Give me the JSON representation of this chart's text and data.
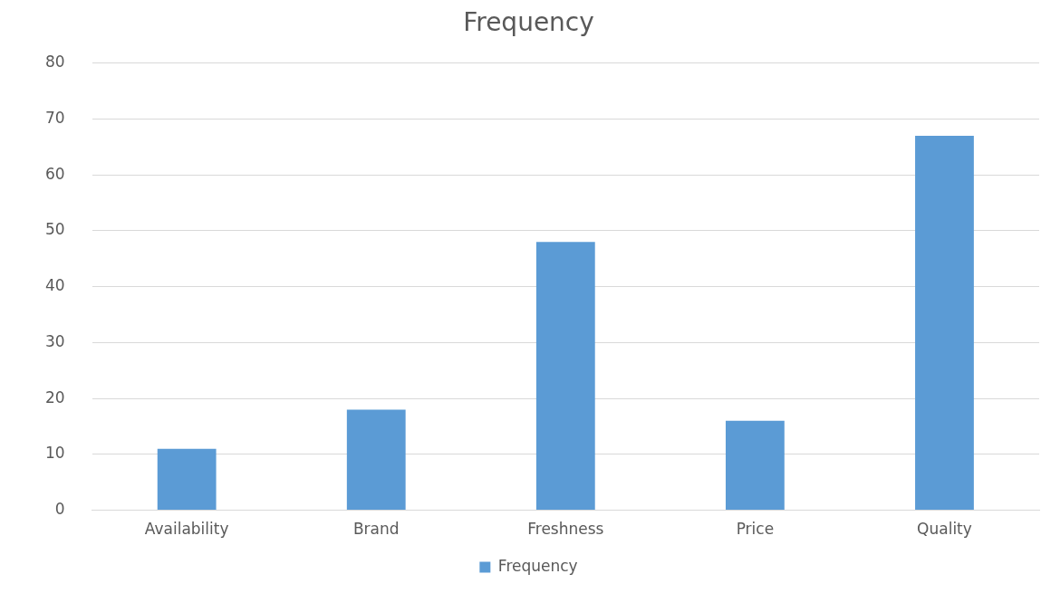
{
  "chart_data": {
    "type": "bar",
    "title": "Frequency",
    "categories": [
      "Availability",
      "Brand",
      "Freshness",
      "Price",
      "Quality"
    ],
    "series": [
      {
        "name": "Frequency",
        "color": "#5b9bd5",
        "values": [
          11,
          18,
          48,
          16,
          67
        ]
      }
    ],
    "ylim": [
      0,
      80
    ],
    "yticks": [
      0,
      10,
      20,
      30,
      40,
      50,
      60,
      70,
      80
    ],
    "grid": "y",
    "legend": "bottom"
  }
}
